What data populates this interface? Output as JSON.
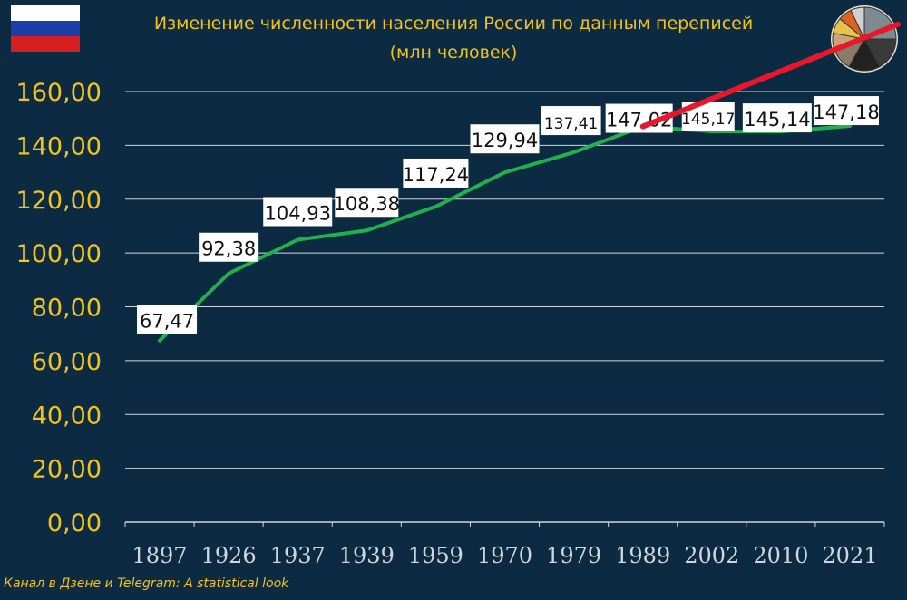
{
  "flag_colors": [
    "#ffffff",
    "#1c3ea8",
    "#d42020"
  ],
  "footer": "Канал в Дзене и Telegram: A statistical look",
  "pie_icon": {
    "name": "pie-chart-icon",
    "colors": [
      "#7d8a90",
      "#3a3a3a",
      "#222222",
      "#8a7a6a",
      "#c9a67a",
      "#e6c24a",
      "#e06020",
      "#d0d0d0"
    ]
  },
  "colors": {
    "line": "#22b04c",
    "trend": "#e8182c",
    "axis_text": "#f2c418",
    "grid": "#cfd6dc",
    "label_bg": "#ffffff",
    "label_text": "#111111"
  },
  "chart_data": {
    "type": "line",
    "title": "Изменение численности населения России по данным переписей",
    "subtitle": "(млн человек)",
    "categories": [
      "1897",
      "1926",
      "1937",
      "1939",
      "1959",
      "1970",
      "1979",
      "1989",
      "2002",
      "2010",
      "2021"
    ],
    "values": [
      67.47,
      92.38,
      104.93,
      108.38,
      117.24,
      129.94,
      137.41,
      147.02,
      145.17,
      145.14,
      147.18
    ],
    "data_labels": [
      "67,47",
      "92,38",
      "104,93",
      "108,38",
      "117,24",
      "129,94",
      "137,41",
      "147,02",
      "145,17",
      "145,14",
      "147,18"
    ],
    "yticks": [
      "0,00",
      "20,00",
      "40,00",
      "60,00",
      "80,00",
      "100,00",
      "120,00",
      "140,00",
      "160,00"
    ],
    "ylim": [
      0,
      160
    ],
    "grid": true,
    "legend": "none",
    "trend_line": {
      "from_category": "1989",
      "from_value": 147.02,
      "to_value": 185,
      "extends": "beyond last category"
    }
  }
}
